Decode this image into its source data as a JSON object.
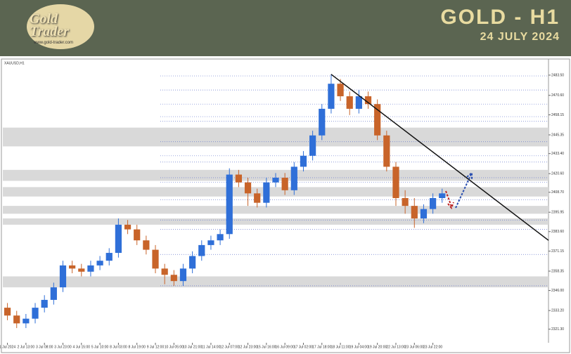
{
  "header": {
    "logo": "Gold Trader",
    "site": "www.gold-trader.com",
    "title": "GOLD - H1",
    "date": "24 JULY 2024"
  },
  "chart_data": {
    "type": "candlestick",
    "symbol": "XAUUSD,H1",
    "x": [
      "1 Jul 2024",
      null,
      "2 Jul 13:00",
      null,
      "3 Jul 08:00",
      null,
      "3 Jul 23:00",
      null,
      "4 Jul 15:00",
      null,
      "5 Jul 10:00",
      null,
      "8 Jul 03:00",
      null,
      "8 Jul 19:00",
      null,
      "9 Jul 12:00",
      null,
      "10 Jul 05:00",
      null,
      "10 Jul 21:00",
      null,
      "11 Jul 14:00",
      null,
      "12 Jul 07:00",
      null,
      "12 Jul 23:00",
      null,
      "15 Jul 16:00",
      null,
      "16 Jul 09:00",
      null,
      "17 Jul 02:00",
      null,
      "17 Jul 18:00",
      null,
      "18 Jul 11:00",
      null,
      "19 Jul 04:00",
      null,
      "19 Jul 20:00",
      null,
      "22 Jul 13:00",
      null,
      "23 Jul 06:00",
      null,
      "23 Jul 22:00",
      null
    ],
    "open": [
      2335,
      2330,
      2325,
      2328,
      2335,
      2340,
      2348,
      2362,
      2360,
      2358,
      2362,
      2365,
      2370,
      2388,
      2385,
      2378,
      2372,
      2360,
      2356,
      2352,
      2360,
      2368,
      2375,
      2378,
      2382,
      2420,
      2415,
      2408,
      2402,
      2415,
      2418,
      2410,
      2425,
      2432,
      2445,
      2462,
      2478,
      2470,
      2462,
      2470,
      2465,
      2445,
      2425,
      2405,
      2400,
      2392,
      2398,
      2405
    ],
    "high": [
      2338,
      2333,
      2331,
      2338,
      2343,
      2351,
      2365,
      2365,
      2363,
      2365,
      2368,
      2373,
      2392,
      2391,
      2388,
      2381,
      2375,
      2363,
      2359,
      2363,
      2371,
      2378,
      2381,
      2385,
      2424,
      2423,
      2418,
      2411,
      2418,
      2421,
      2421,
      2428,
      2435,
      2448,
      2465,
      2484,
      2481,
      2473,
      2474,
      2473,
      2468,
      2448,
      2428,
      2410,
      2405,
      2401,
      2408,
      2411
    ],
    "low": [
      2327,
      2322,
      2322,
      2325,
      2332,
      2337,
      2345,
      2357,
      2355,
      2355,
      2359,
      2362,
      2367,
      2382,
      2375,
      2369,
      2357,
      2350,
      2349,
      2349,
      2357,
      2365,
      2372,
      2375,
      2379,
      2412,
      2400,
      2399,
      2399,
      2412,
      2407,
      2407,
      2422,
      2429,
      2442,
      2459,
      2467,
      2458,
      2459,
      2462,
      2442,
      2422,
      2400,
      2395,
      2386,
      2389,
      2395,
      2402
    ],
    "close": [
      2330,
      2325,
      2328,
      2335,
      2340,
      2348,
      2362,
      2360,
      2358,
      2362,
      2365,
      2370,
      2388,
      2385,
      2378,
      2372,
      2360,
      2356,
      2352,
      2360,
      2368,
      2375,
      2378,
      2382,
      2420,
      2415,
      2408,
      2402,
      2415,
      2418,
      2410,
      2425,
      2432,
      2445,
      2462,
      2478,
      2470,
      2462,
      2470,
      2465,
      2445,
      2425,
      2405,
      2400,
      2392,
      2398,
      2405,
      2408
    ],
    "up_color": "#2f6fd8",
    "down_color": "#c8642a",
    "zones": [
      [
        2438,
        2450
      ],
      [
        2416,
        2423
      ],
      [
        2406,
        2412
      ],
      [
        2395,
        2400
      ],
      [
        2388,
        2392
      ],
      [
        2348,
        2355
      ]
    ],
    "fib_levels": [
      2483,
      2474,
      2465,
      2457,
      2454,
      2441,
      2432,
      2428,
      2418,
      2415,
      2404,
      2391,
      2385,
      2369,
      2349
    ],
    "trendline": [
      2484,
      2378
    ],
    "ylim": [
      2318,
      2492
    ],
    "yticks": [
      {
        "value": 2483.5,
        "label": "2483.50"
      },
      {
        "value": 2470.6,
        "label": "2470.60"
      },
      {
        "value": 2458.15,
        "label": "2458.15"
      },
      {
        "value": 2445.35,
        "label": "2445.35"
      },
      {
        "value": 2433.4,
        "label": "2433.40"
      },
      {
        "value": 2420.6,
        "label": "2420.60"
      },
      {
        "value": 2408.7,
        "label": "2408.70"
      },
      {
        "value": 2395.95,
        "label": "2395.95"
      },
      {
        "value": 2383.6,
        "label": "2383.60"
      },
      {
        "value": 2371.15,
        "label": "2371.15"
      },
      {
        "value": 2358.35,
        "label": "2358.35"
      },
      {
        "value": 2346,
        "label": "2346.00"
      },
      {
        "value": 2333.2,
        "label": "2333.20"
      },
      {
        "value": 2321.3,
        "label": "2321.30"
      }
    ]
  }
}
